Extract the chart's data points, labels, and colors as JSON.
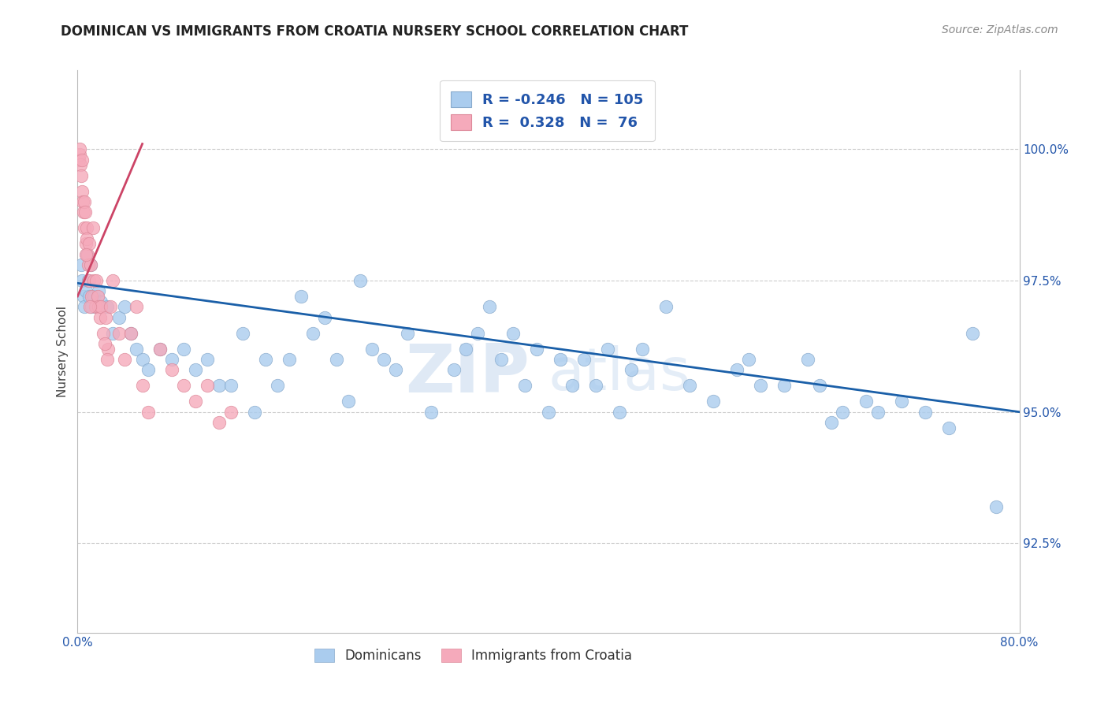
{
  "title": "DOMINICAN VS IMMIGRANTS FROM CROATIA NURSERY SCHOOL CORRELATION CHART",
  "source": "Source: ZipAtlas.com",
  "ylabel": "Nursery School",
  "yticks": [
    92.5,
    95.0,
    97.5,
    100.0
  ],
  "ytick_labels": [
    "92.5%",
    "95.0%",
    "97.5%",
    "100.0%"
  ],
  "xmin": 0.0,
  "xmax": 80.0,
  "ymin": 90.8,
  "ymax": 101.5,
  "blue_color": "#aaccee",
  "pink_color": "#f5aabb",
  "blue_edge_color": "#88aacc",
  "pink_edge_color": "#dd8899",
  "blue_line_color": "#1a5fa8",
  "pink_line_color": "#cc4466",
  "axis_tick_color": "#2255aa",
  "title_color": "#222222",
  "source_color": "#888888",
  "watermark_zip_color": "#c5d8ee",
  "watermark_atlas_color": "#c5d8ee",
  "background_color": "#ffffff",
  "grid_color": "#cccccc",
  "blue_trend_x0": 0.0,
  "blue_trend_x1": 80.0,
  "blue_trend_y0": 97.45,
  "blue_trend_y1": 95.0,
  "pink_trend_x0": 0.0,
  "pink_trend_x1": 5.5,
  "pink_trend_y0": 97.2,
  "pink_trend_y1": 100.1,
  "blue_x": [
    0.3,
    0.4,
    0.5,
    0.6,
    0.7,
    0.8,
    0.9,
    1.0,
    1.1,
    1.2,
    1.4,
    1.6,
    1.8,
    2.0,
    2.5,
    3.0,
    3.5,
    4.0,
    4.5,
    5.0,
    5.5,
    6.0,
    7.0,
    8.0,
    9.0,
    10.0,
    11.0,
    12.0,
    13.0,
    14.0,
    15.0,
    16.0,
    17.0,
    18.0,
    19.0,
    20.0,
    21.0,
    22.0,
    23.0,
    24.0,
    25.0,
    26.0,
    27.0,
    28.0,
    30.0,
    32.0,
    33.0,
    34.0,
    35.0,
    36.0,
    37.0,
    38.0,
    39.0,
    40.0,
    41.0,
    42.0,
    43.0,
    44.0,
    45.0,
    46.0,
    47.0,
    48.0,
    50.0,
    52.0,
    54.0,
    56.0,
    57.0,
    58.0,
    60.0,
    62.0,
    63.0,
    64.0,
    65.0,
    67.0,
    68.0,
    70.0,
    72.0,
    74.0,
    76.0,
    78.0
  ],
  "blue_y": [
    97.8,
    97.5,
    97.2,
    97.0,
    97.3,
    98.0,
    97.5,
    97.2,
    97.8,
    97.0,
    97.2,
    97.0,
    97.3,
    97.1,
    97.0,
    96.5,
    96.8,
    97.0,
    96.5,
    96.2,
    96.0,
    95.8,
    96.2,
    96.0,
    96.2,
    95.8,
    96.0,
    95.5,
    95.5,
    96.5,
    95.0,
    96.0,
    95.5,
    96.0,
    97.2,
    96.5,
    96.8,
    96.0,
    95.2,
    97.5,
    96.2,
    96.0,
    95.8,
    96.5,
    95.0,
    95.8,
    96.2,
    96.5,
    97.0,
    96.0,
    96.5,
    95.5,
    96.2,
    95.0,
    96.0,
    95.5,
    96.0,
    95.5,
    96.2,
    95.0,
    95.8,
    96.2,
    97.0,
    95.5,
    95.2,
    95.8,
    96.0,
    95.5,
    95.5,
    96.0,
    95.5,
    94.8,
    95.0,
    95.2,
    95.0,
    95.2,
    95.0,
    94.7,
    96.5,
    93.2
  ],
  "pink_x": [
    0.1,
    0.15,
    0.2,
    0.25,
    0.3,
    0.35,
    0.4,
    0.45,
    0.5,
    0.55,
    0.6,
    0.65,
    0.7,
    0.75,
    0.8,
    0.85,
    0.9,
    0.95,
    1.0,
    1.1,
    1.2,
    1.3,
    1.4,
    1.5,
    1.6,
    1.7,
    1.8,
    1.9,
    2.0,
    2.2,
    2.4,
    2.6,
    2.8,
    3.0,
    3.5,
    4.0,
    4.5,
    5.0,
    5.5,
    6.0,
    7.0,
    8.0,
    9.0,
    10.0,
    11.0,
    12.0,
    13.0,
    2.3,
    2.5,
    1.05,
    0.72
  ],
  "pink_y": [
    99.8,
    99.9,
    100.0,
    99.7,
    99.5,
    99.8,
    99.2,
    99.0,
    98.8,
    99.0,
    98.5,
    98.8,
    98.2,
    98.5,
    98.3,
    98.0,
    97.8,
    98.2,
    97.5,
    97.8,
    97.2,
    98.5,
    97.5,
    97.0,
    97.5,
    97.2,
    97.0,
    96.8,
    97.0,
    96.5,
    96.8,
    96.2,
    97.0,
    97.5,
    96.5,
    96.0,
    96.5,
    97.0,
    95.5,
    95.0,
    96.2,
    95.8,
    95.5,
    95.2,
    95.5,
    94.8,
    95.0,
    96.3,
    96.0,
    97.0,
    98.0
  ]
}
